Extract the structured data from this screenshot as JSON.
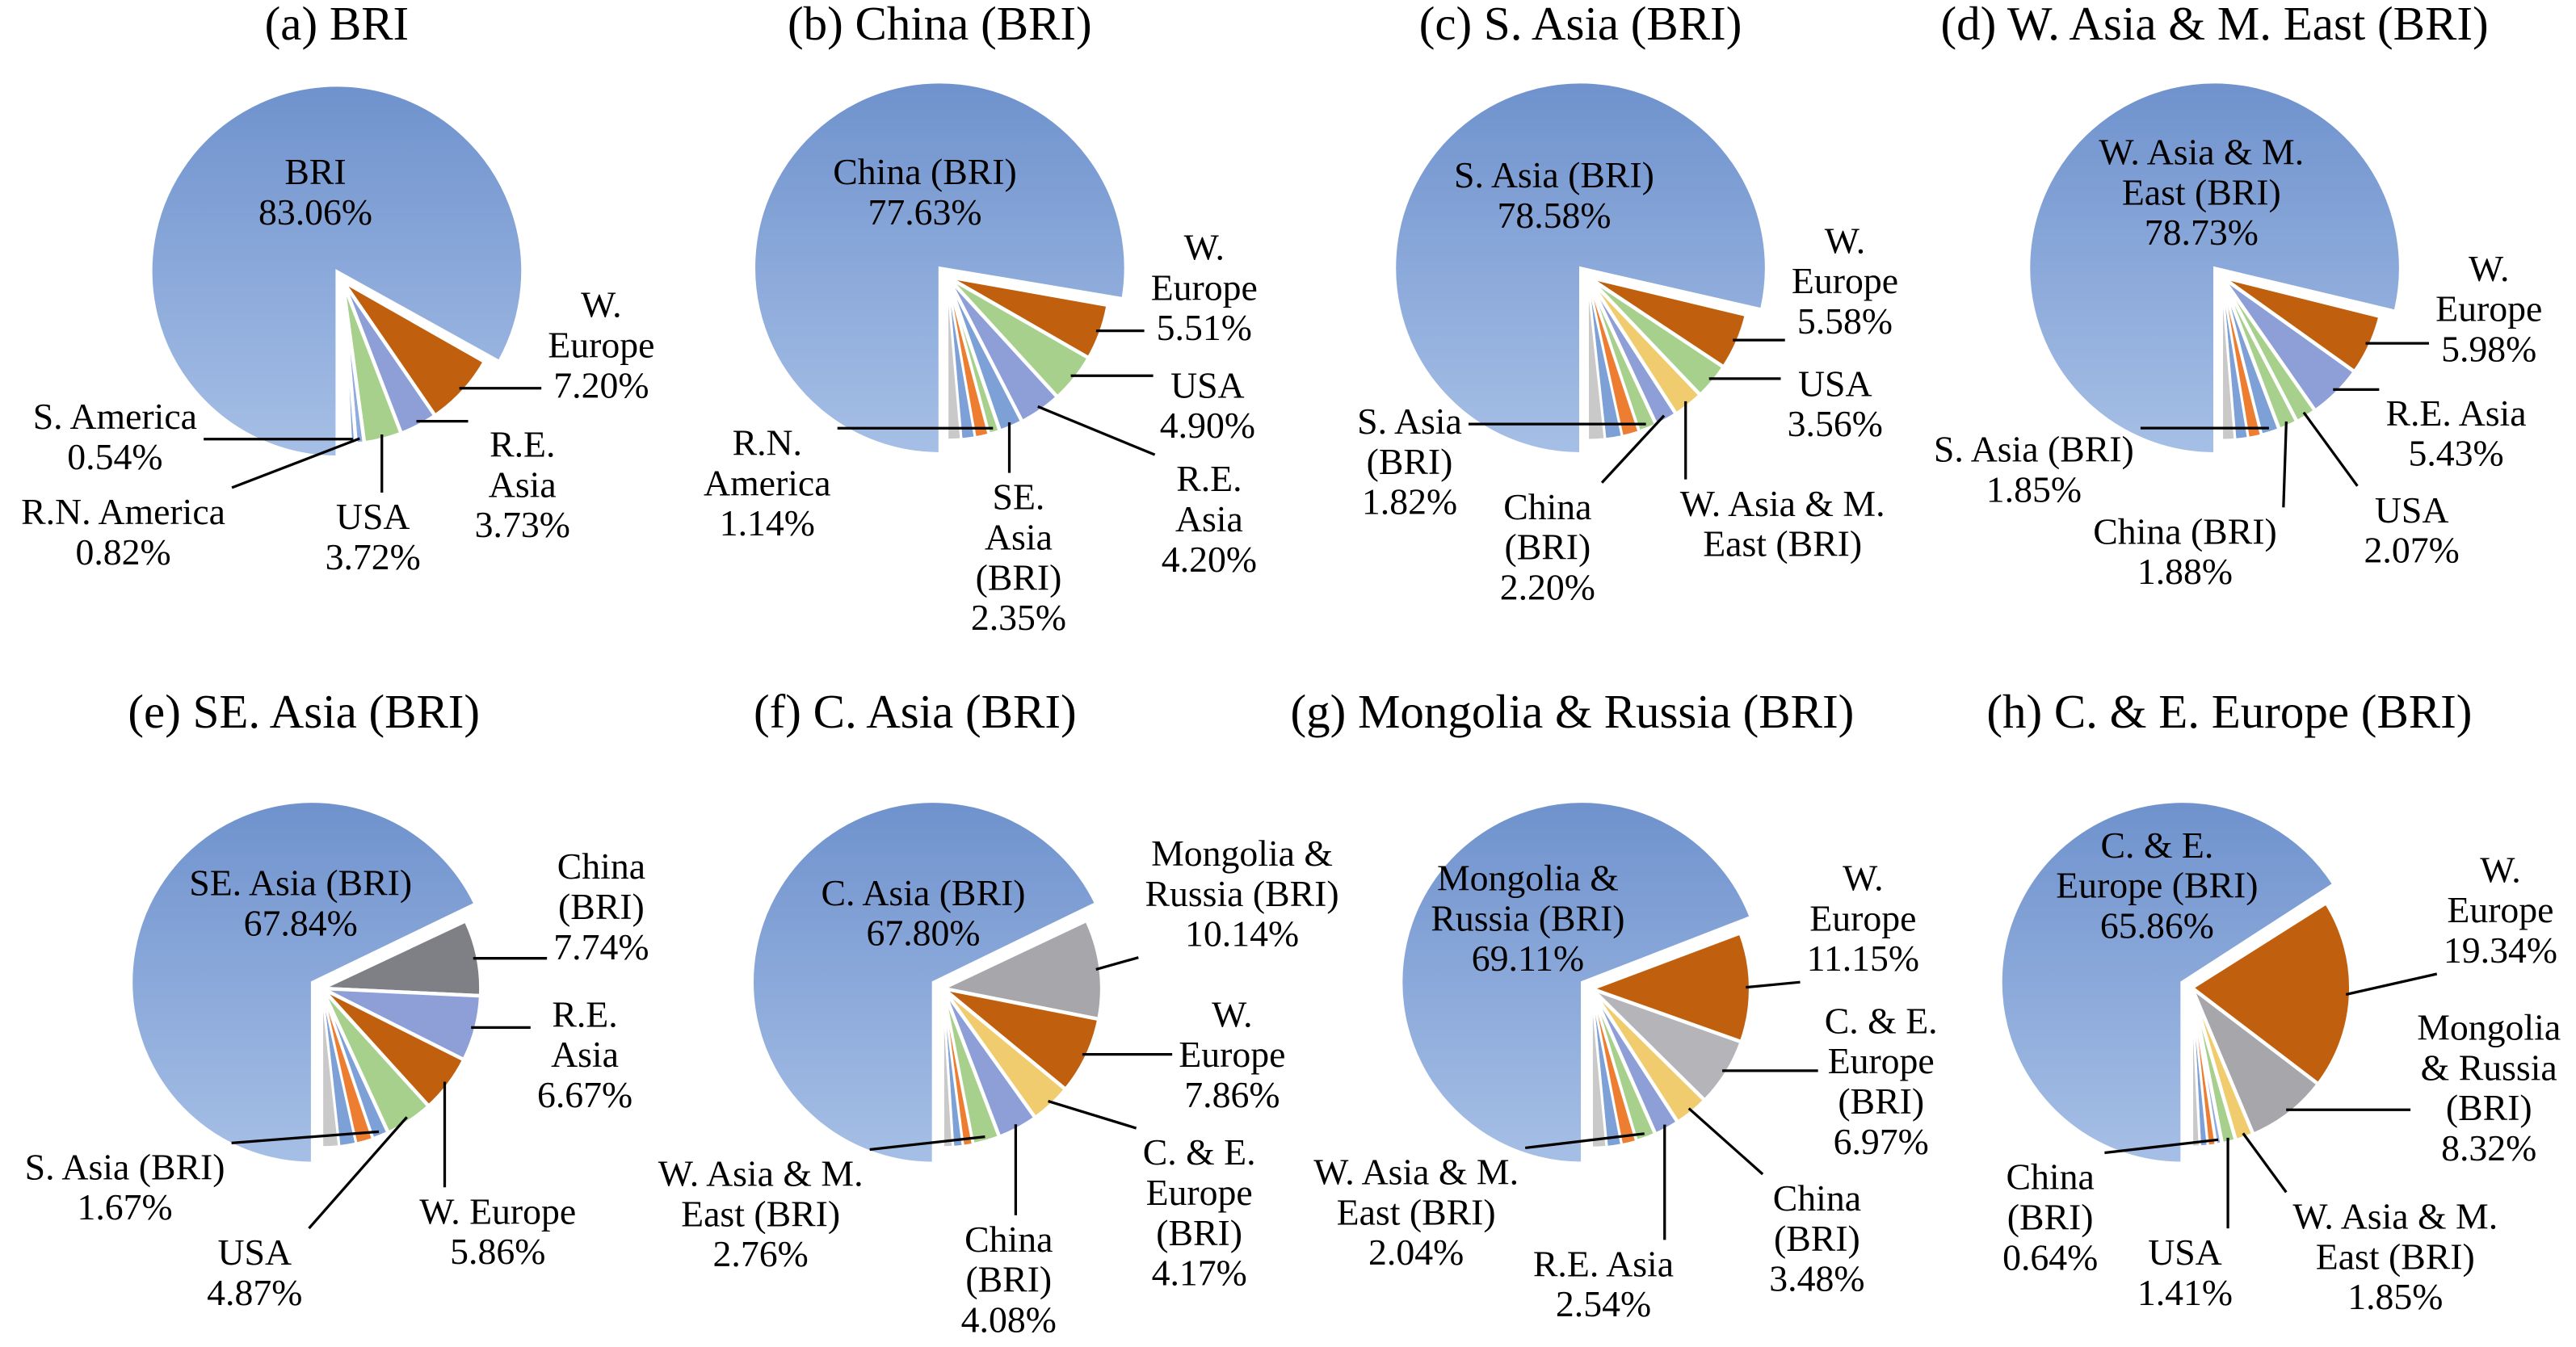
{
  "chart_data": [
    {
      "type": "pie",
      "title": "(a) BRI",
      "main": {
        "label_lines": [
          "BRI"
        ],
        "value": 83.06
      },
      "slices": [
        {
          "label_lines": [
            "W.",
            "Europe"
          ],
          "value": 7.2,
          "color": "#c0600f"
        },
        {
          "label_lines": [
            "R.E.",
            "Asia"
          ],
          "value": 3.73,
          "color": "#8e9fd8"
        },
        {
          "label_lines": [
            "USA"
          ],
          "value": 3.72,
          "color": "#a8d08d"
        },
        {
          "label_lines": [
            "R.N. America"
          ],
          "value": 0.82,
          "color": "#8faadc"
        },
        {
          "label_lines": [
            "S. America"
          ],
          "value": 0.54,
          "color": "#7da0d6"
        }
      ]
    },
    {
      "type": "pie",
      "title": "(b) China (BRI)",
      "main": {
        "label_lines": [
          "China (BRI)"
        ],
        "value": 77.63
      },
      "slices": [
        {
          "label_lines": [
            "W.",
            "Europe"
          ],
          "value": 5.51,
          "color": "#c0600f"
        },
        {
          "label_lines": [
            "USA"
          ],
          "value": 4.9,
          "color": "#a8d08d"
        },
        {
          "label_lines": [
            "R.E.",
            "Asia"
          ],
          "value": 4.2,
          "color": "#8e9fd8"
        },
        {
          "label_lines": [
            "SE.",
            "Asia",
            "(BRI)"
          ],
          "value": 2.35,
          "color": "#7da0d6"
        },
        {
          "label_lines": [
            "R.N.",
            "America"
          ],
          "value": 1.14,
          "color": "#a8d08d"
        }
      ]
    },
    {
      "type": "pie",
      "title": "(c) S. Asia (BRI)",
      "main": {
        "label_lines": [
          "S. Asia (BRI)"
        ],
        "value": 78.58
      },
      "slices": [
        {
          "label_lines": [
            "W.",
            "Europe"
          ],
          "value": 5.58,
          "color": "#c0600f"
        },
        {
          "label_lines": [
            "USA"
          ],
          "value": 3.56,
          "color": "#a8d08d"
        },
        {
          "label_lines": [
            "W. Asia & M.",
            "East (BRI)"
          ],
          "value": null,
          "color": "#f0cc6e"
        },
        {
          "label_lines": [
            "China",
            "(BRI)"
          ],
          "value": 2.2,
          "color": "#8e9fd8"
        },
        {
          "label_lines": [
            "S. Asia",
            "(BRI)"
          ],
          "value": 1.82,
          "color": "#a8d08d"
        }
      ]
    },
    {
      "type": "pie",
      "title": "(d) W. Asia & M. East (BRI)",
      "main": {
        "label_lines": [
          "W. Asia & M.",
          "East (BRI)"
        ],
        "value": 78.73
      },
      "slices": [
        {
          "label_lines": [
            "W.",
            "Europe"
          ],
          "value": 5.98,
          "color": "#c0600f"
        },
        {
          "label_lines": [
            "R.E. Asia"
          ],
          "value": 5.43,
          "color": "#8e9fd8"
        },
        {
          "label_lines": [
            "USA"
          ],
          "value": 2.07,
          "color": "#a8d08d"
        },
        {
          "label_lines": [
            "China (BRI)"
          ],
          "value": 1.88,
          "color": "#a8d08d"
        },
        {
          "label_lines": [
            "S. Asia (BRI)"
          ],
          "value": 1.85,
          "color": "#7da0d6"
        }
      ]
    },
    {
      "type": "pie",
      "title": "(e) SE. Asia (BRI)",
      "main": {
        "label_lines": [
          "SE. Asia (BRI)"
        ],
        "value": 67.84
      },
      "slices": [
        {
          "label_lines": [
            "China",
            "(BRI)"
          ],
          "value": 7.74,
          "color": "#7f7f86"
        },
        {
          "label_lines": [
            "R.E.",
            "Asia"
          ],
          "value": 6.67,
          "color": "#8e9fd8"
        },
        {
          "label_lines": [
            "W. Europe"
          ],
          "value": 5.86,
          "color": "#c0600f"
        },
        {
          "label_lines": [
            "USA"
          ],
          "value": 4.87,
          "color": "#a8d08d"
        },
        {
          "label_lines": [
            "S. Asia (BRI)"
          ],
          "value": 1.67,
          "color": "#7da0d6"
        }
      ]
    },
    {
      "type": "pie",
      "title": "(f) C. Asia (BRI)",
      "main": {
        "label_lines": [
          "C. Asia (BRI)"
        ],
        "value": 67.8
      },
      "slices": [
        {
          "label_lines": [
            "Mongolia &",
            "Russia (BRI)"
          ],
          "value": 10.14,
          "color": "#a7a6ab"
        },
        {
          "label_lines": [
            "W.",
            "Europe"
          ],
          "value": 7.86,
          "color": "#c0600f"
        },
        {
          "label_lines": [
            "C. & E.",
            "Europe",
            "(BRI)"
          ],
          "value": 4.17,
          "color": "#f0cc6e"
        },
        {
          "label_lines": [
            "China",
            "(BRI)"
          ],
          "value": 4.08,
          "color": "#8e9fd8"
        },
        {
          "label_lines": [
            "W. Asia & M.",
            "East (BRI)"
          ],
          "value": 2.76,
          "color": "#a8d08d"
        }
      ]
    },
    {
      "type": "pie",
      "title": "(g) Mongolia & Russia (BRI)",
      "main": {
        "label_lines": [
          "Mongolia &",
          "Russia (BRI)"
        ],
        "value": 69.11
      },
      "slices": [
        {
          "label_lines": [
            "W.",
            "Europe"
          ],
          "value": 11.15,
          "color": "#c0600f"
        },
        {
          "label_lines": [
            "C. & E.",
            "Europe",
            "(BRI)"
          ],
          "value": 6.97,
          "color": "#b5b4b9"
        },
        {
          "label_lines": [
            "China",
            "(BRI)"
          ],
          "value": 3.48,
          "color": "#f0cc6e"
        },
        {
          "label_lines": [
            "R.E. Asia"
          ],
          "value": 2.54,
          "color": "#8e9fd8"
        },
        {
          "label_lines": [
            "W. Asia & M.",
            "East (BRI)"
          ],
          "value": 2.04,
          "color": "#a8d08d"
        }
      ]
    },
    {
      "type": "pie",
      "title": "(h) C. & E. Europe (BRI)",
      "main": {
        "label_lines": [
          "C. & E.",
          "Europe (BRI)"
        ],
        "value": 65.86
      },
      "slices": [
        {
          "label_lines": [
            "W.",
            "Europe"
          ],
          "value": 19.34,
          "color": "#c0600f"
        },
        {
          "label_lines": [
            "Mongolia",
            "& Russia",
            "(BRI)"
          ],
          "value": 8.32,
          "color": "#a7a6ab"
        },
        {
          "label_lines": [
            "W. Asia & M.",
            "East (BRI)"
          ],
          "value": 1.85,
          "color": "#f0cc6e"
        },
        {
          "label_lines": [
            "USA"
          ],
          "value": 1.41,
          "color": "#a8d08d"
        },
        {
          "label_lines": [
            "China",
            "(BRI)"
          ],
          "value": 0.64,
          "color": "#8faadc"
        }
      ]
    }
  ],
  "colors": {
    "main_top": "#6f92cd",
    "main_bottom": "#a6bfe6",
    "minor_sliver": "#ed7d31"
  }
}
